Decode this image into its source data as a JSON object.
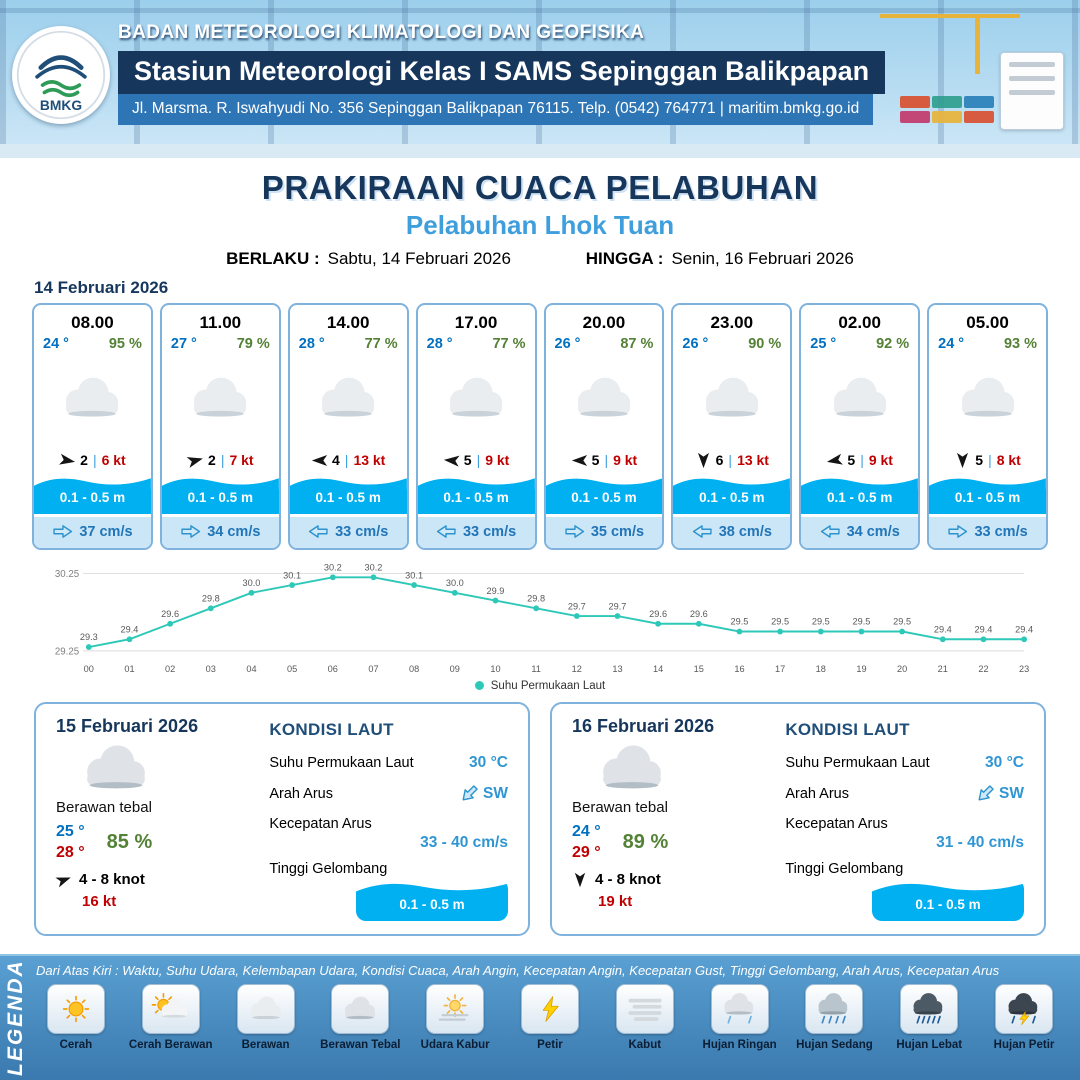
{
  "colors": {
    "navy": "#16365c",
    "band_blue": "#2e75b6",
    "port_blue": "#3f9fdc",
    "temp_blue": "#0070c0",
    "humidity_green": "#538135",
    "gust_red": "#c00000",
    "wave_blue": "#00b0f0",
    "value_blue": "#2f96d3",
    "chart_teal": "#2ec8b8"
  },
  "header": {
    "agency": "BADAN METEOROLOGI KLIMATOLOGI DAN GEOFISIKA",
    "station": "Stasiun Meteorologi Kelas I SAMS Sepinggan Balikpapan",
    "address": "Jl. Marsma. R. Iswahyudi No. 356 Sepinggan Balikpapan 76115. Telp. (0542) 764771 | maritim.bmkg.go.id",
    "logo_text": "BMKG"
  },
  "title": {
    "main": "PRAKIRAAN CUACA PELABUHAN",
    "port": "Pelabuhan Lhok Tuan",
    "valid_label": "BERLAKU :",
    "valid_value": "Sabtu, 14 Februari 2026",
    "until_label": "HINGGA :",
    "until_value": "Senin, 16 Februari 2026"
  },
  "hourly": {
    "date": "14 Februari 2026",
    "cards": [
      {
        "time": "08.00",
        "temp": "24 °",
        "humidity": "95 %",
        "icon": "berawan",
        "wind": "2",
        "wind_dir_deg": 10,
        "gust": "6 kt",
        "wave": "0.1 - 0.5 m",
        "current": "37 cm/s",
        "current_dir_deg": 0
      },
      {
        "time": "11.00",
        "temp": "27 °",
        "humidity": "79 %",
        "icon": "berawan",
        "wind": "2",
        "wind_dir_deg": -15,
        "gust": "7 kt",
        "wave": "0.1 - 0.5 m",
        "current": "34 cm/s",
        "current_dir_deg": 0
      },
      {
        "time": "14.00",
        "temp": "28 °",
        "humidity": "77 %",
        "icon": "berawan",
        "wind": "4",
        "wind_dir_deg": 180,
        "gust": "13 kt",
        "wave": "0.1 - 0.5 m",
        "current": "33 cm/s",
        "current_dir_deg": 180
      },
      {
        "time": "17.00",
        "temp": "28 °",
        "humidity": "77 %",
        "icon": "berawan",
        "wind": "5",
        "wind_dir_deg": 185,
        "gust": "9 kt",
        "wave": "0.1 - 0.5 m",
        "current": "33 cm/s",
        "current_dir_deg": 180
      },
      {
        "time": "20.00",
        "temp": "26 °",
        "humidity": "87 %",
        "icon": "berawan",
        "wind": "5",
        "wind_dir_deg": 180,
        "gust": "9 kt",
        "wave": "0.1 - 0.5 m",
        "current": "35 cm/s",
        "current_dir_deg": 0
      },
      {
        "time": "23.00",
        "temp": "26 °",
        "humidity": "90 %",
        "icon": "berawan",
        "wind": "6",
        "wind_dir_deg": 90,
        "gust": "13 kt",
        "wave": "0.1 - 0.5 m",
        "current": "38 cm/s",
        "current_dir_deg": 180
      },
      {
        "time": "02.00",
        "temp": "25 °",
        "humidity": "92 %",
        "icon": "berawan",
        "wind": "5",
        "wind_dir_deg": 170,
        "gust": "9 kt",
        "wave": "0.1 - 0.5 m",
        "current": "34 cm/s",
        "current_dir_deg": 180
      },
      {
        "time": "05.00",
        "temp": "24 °",
        "humidity": "93 %",
        "icon": "berawan",
        "wind": "5",
        "wind_dir_deg": 90,
        "gust": "8 kt",
        "wave": "0.1 - 0.5 m",
        "current": "33 cm/s",
        "current_dir_deg": 0
      }
    ]
  },
  "chart_data": {
    "type": "line",
    "x": [
      "00",
      "01",
      "02",
      "03",
      "04",
      "05",
      "06",
      "07",
      "08",
      "09",
      "10",
      "11",
      "12",
      "13",
      "14",
      "15",
      "16",
      "17",
      "18",
      "19",
      "20",
      "21",
      "22",
      "23"
    ],
    "series": [
      {
        "name": "Suhu Permukaan Laut",
        "values": [
          29.3,
          29.4,
          29.6,
          29.8,
          30.0,
          30.1,
          30.2,
          30.2,
          30.1,
          30.0,
          29.9,
          29.8,
          29.7,
          29.7,
          29.6,
          29.6,
          29.5,
          29.5,
          29.5,
          29.5,
          29.5,
          29.4,
          29.4,
          29.4
        ]
      }
    ],
    "ylim": [
      29.25,
      30.25
    ],
    "yticks": [
      29.25,
      30.25
    ],
    "grid": true,
    "legend_position": "bottom",
    "line_color": "#2ec8b8",
    "xlabel": "",
    "ylabel": ""
  },
  "daily": [
    {
      "date": "15 Februari 2026",
      "icon": "berawan-tebal",
      "condition": "Berawan tebal",
      "temp_min": "25 °",
      "temp_max": "28 °",
      "humidity": "85 %",
      "wind_range": "4 - 8 knot",
      "wind_dir_deg": -20,
      "gust": "16 kt",
      "sea": {
        "heading": "KONDISI LAUT",
        "sst_label": "Suhu Permukaan Laut",
        "sst": "30 °C",
        "current_dir_label": "Arah Arus",
        "current_dir": "SW",
        "current_dir_deg": 135,
        "current_speed_label": "Kecepatan Arus",
        "current_speed": "33 - 40 cm/s",
        "wave_label": "Tinggi Gelombang",
        "wave": "0.1 - 0.5 m"
      }
    },
    {
      "date": "16 Februari 2026",
      "icon": "berawan-tebal",
      "condition": "Berawan tebal",
      "temp_min": "24 °",
      "temp_max": "29 °",
      "humidity": "89 %",
      "wind_range": "4 - 8 knot",
      "wind_dir_deg": 90,
      "gust": "19 kt",
      "sea": {
        "heading": "KONDISI LAUT",
        "sst_label": "Suhu Permukaan Laut",
        "sst": "30 °C",
        "current_dir_label": "Arah Arus",
        "current_dir": "SW",
        "current_dir_deg": 135,
        "current_speed_label": "Kecepatan Arus",
        "current_speed": "31 - 40 cm/s",
        "wave_label": "Tinggi Gelombang",
        "wave": "0.1 - 0.5 m"
      }
    }
  ],
  "legend": {
    "title": "LEGENDA",
    "description": "Dari Atas Kiri : Waktu, Suhu Udara, Kelembapan Udara, Kondisi Cuaca, Arah Angin, Kecepatan Angin, Kecepatan Gust, Tinggi Gelombang, Arah Arus, Kecepatan Arus",
    "items": [
      {
        "label": "Cerah",
        "icon": "cerah"
      },
      {
        "label": "Cerah Berawan",
        "icon": "cerah-berawan"
      },
      {
        "label": "Berawan",
        "icon": "berawan"
      },
      {
        "label": "Berawan Tebal",
        "icon": "berawan-tebal"
      },
      {
        "label": "Udara Kabur",
        "icon": "udara-kabur"
      },
      {
        "label": "Petir",
        "icon": "petir"
      },
      {
        "label": "Kabut",
        "icon": "kabut"
      },
      {
        "label": "Hujan Ringan",
        "icon": "hujan-ringan"
      },
      {
        "label": "Hujan Sedang",
        "icon": "hujan-sedang"
      },
      {
        "label": "Hujan Lebat",
        "icon": "hujan-lebat"
      },
      {
        "label": "Hujan Petir",
        "icon": "hujan-petir"
      }
    ]
  }
}
